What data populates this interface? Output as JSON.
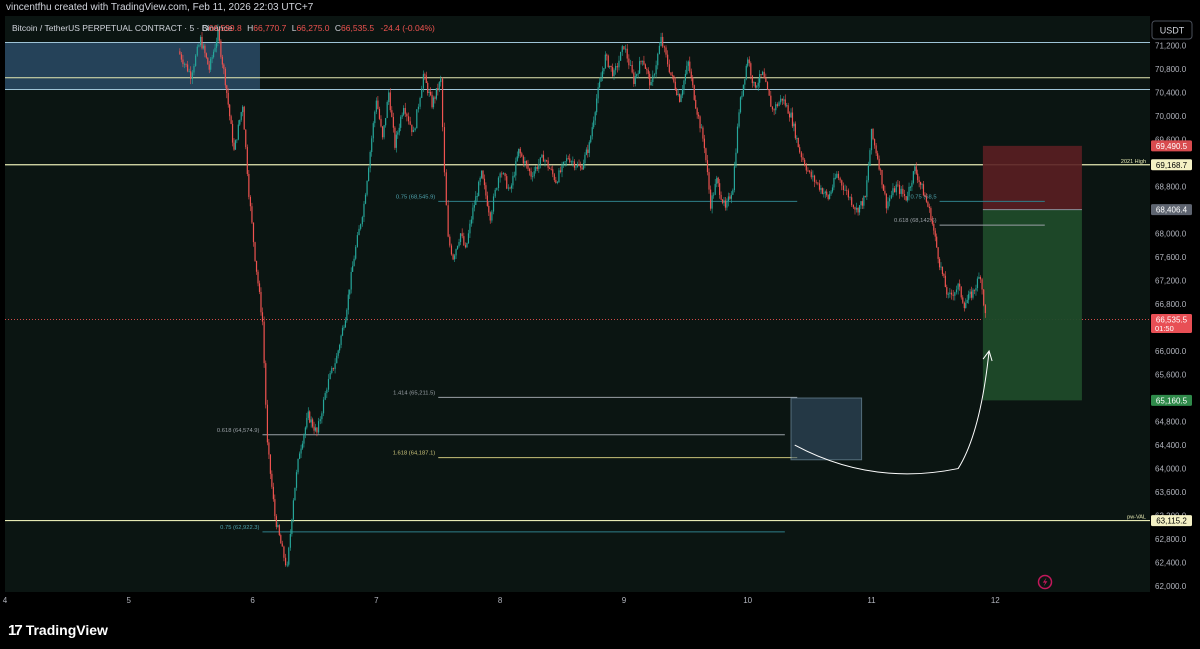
{
  "header": {
    "credit": "vincentfhu created with TradingView.com, Feb 11, 2026 22:03 UTC+7",
    "symbol": "Bitcoin / TetherUS PERPETUAL CONTRACT · 5 · Binance",
    "o_label": "O",
    "o_value": "66,599.8",
    "h_label": "H",
    "h_value": "66,770.7",
    "l_label": "L",
    "l_value": "66,275.0",
    "c_label": "C",
    "c_value": "66,535.5",
    "change": "-24.4 (-0.04%)"
  },
  "brand": {
    "name": "TradingView",
    "mark": "17"
  },
  "colors": {
    "up": "#26a69a",
    "down": "#ef5350",
    "background": "#0b1512",
    "zone": "#2a4a66",
    "level_line": "#e6e9b3",
    "fib_line": "#2f6f7a",
    "short_sl": "#5a1e22",
    "short_tp": "#1f4a2a",
    "box": "#3a5670"
  },
  "chart_data": {
    "type": "candlestick",
    "currency": "USDT",
    "ylim": [
      61900,
      71700
    ],
    "xlim": [
      4,
      13.25
    ],
    "y_ticks": [
      "71,200.0",
      "70,800.0",
      "70,400.0",
      "70,000.0",
      "69,600.0",
      "68,800.0",
      "68,000.0",
      "67,600.0",
      "67,200.0",
      "66,800.0",
      "66,000.0",
      "65,600.0",
      "64,800.0",
      "64,400.0",
      "64,000.0",
      "63,600.0",
      "63,200.0",
      "62,800.0",
      "62,400.0",
      "62,000.0"
    ],
    "x_ticks": [
      "4",
      "5",
      "6",
      "7",
      "8",
      "9",
      "10",
      "11",
      "12"
    ],
    "path": [
      [
        5.4,
        71100
      ],
      [
        5.5,
        70700
      ],
      [
        5.58,
        71300
      ],
      [
        5.65,
        70800
      ],
      [
        5.72,
        71400
      ],
      [
        5.78,
        70600
      ],
      [
        5.85,
        69400
      ],
      [
        5.92,
        70200
      ],
      [
        5.97,
        68700
      ],
      [
        6.02,
        67600
      ],
      [
        6.08,
        66500
      ],
      [
        6.12,
        64400
      ],
      [
        6.18,
        63200
      ],
      [
        6.24,
        62600
      ],
      [
        6.28,
        62300
      ],
      [
        6.33,
        63500
      ],
      [
        6.38,
        64300
      ],
      [
        6.45,
        64900
      ],
      [
        6.52,
        64600
      ],
      [
        6.6,
        65400
      ],
      [
        6.68,
        65900
      ],
      [
        6.75,
        66600
      ],
      [
        6.82,
        67600
      ],
      [
        6.9,
        68500
      ],
      [
        6.95,
        69400
      ],
      [
        7.0,
        70300
      ],
      [
        7.05,
        69600
      ],
      [
        7.1,
        70400
      ],
      [
        7.15,
        69500
      ],
      [
        7.22,
        70200
      ],
      [
        7.3,
        69700
      ],
      [
        7.38,
        70700
      ],
      [
        7.45,
        70200
      ],
      [
        7.52,
        70600
      ],
      [
        7.55,
        69000
      ],
      [
        7.58,
        67900
      ],
      [
        7.62,
        67600
      ],
      [
        7.68,
        68000
      ],
      [
        7.72,
        67700
      ],
      [
        7.78,
        68400
      ],
      [
        7.85,
        69000
      ],
      [
        7.92,
        68300
      ],
      [
        8.0,
        69100
      ],
      [
        8.08,
        68700
      ],
      [
        8.15,
        69400
      ],
      [
        8.25,
        69000
      ],
      [
        8.35,
        69300
      ],
      [
        8.45,
        68900
      ],
      [
        8.55,
        69300
      ],
      [
        8.65,
        69100
      ],
      [
        8.72,
        69500
      ],
      [
        8.78,
        70300
      ],
      [
        8.85,
        71000
      ],
      [
        8.92,
        70700
      ],
      [
        9.0,
        71200
      ],
      [
        9.08,
        70600
      ],
      [
        9.15,
        71000
      ],
      [
        9.22,
        70500
      ],
      [
        9.3,
        71300
      ],
      [
        9.38,
        70700
      ],
      [
        9.45,
        70300
      ],
      [
        9.52,
        70900
      ],
      [
        9.58,
        70200
      ],
      [
        9.65,
        69500
      ],
      [
        9.7,
        68500
      ],
      [
        9.75,
        68900
      ],
      [
        9.82,
        68400
      ],
      [
        9.88,
        68800
      ],
      [
        9.93,
        70100
      ],
      [
        10.0,
        71000
      ],
      [
        10.05,
        70500
      ],
      [
        10.12,
        70700
      ],
      [
        10.2,
        70100
      ],
      [
        10.28,
        70300
      ],
      [
        10.35,
        70000
      ],
      [
        10.42,
        69400
      ],
      [
        10.5,
        69000
      ],
      [
        10.58,
        68800
      ],
      [
        10.65,
        68600
      ],
      [
        10.72,
        69000
      ],
      [
        10.8,
        68700
      ],
      [
        10.88,
        68400
      ],
      [
        10.95,
        68600
      ],
      [
        11.0,
        69700
      ],
      [
        11.05,
        69300
      ],
      [
        11.12,
        68500
      ],
      [
        11.2,
        68800
      ],
      [
        11.28,
        68600
      ],
      [
        11.35,
        69100
      ],
      [
        11.42,
        68700
      ],
      [
        11.48,
        68300
      ],
      [
        11.55,
        67500
      ],
      [
        11.62,
        66900
      ],
      [
        11.7,
        67100
      ],
      [
        11.75,
        66800
      ],
      [
        11.82,
        67000
      ],
      [
        11.88,
        67300
      ],
      [
        11.92,
        66600
      ]
    ],
    "zone": {
      "y_low": 70450,
      "y_high": 71250,
      "x_start": 4,
      "x_end": 6.06
    },
    "levels": [
      {
        "y": 69168.7,
        "label": "2021 High",
        "price": "69,168.7",
        "color": "#e6e9b3"
      },
      {
        "y": 63115.2,
        "label": "pw-VAL",
        "price": "63,115.2",
        "color": "#e6e9b3"
      }
    ],
    "zone_inner_line": 70650,
    "zone_top_line": 71250,
    "zone_bottom_line": 70450,
    "fibs": [
      {
        "text": "0.75 (68,545.9)",
        "y": 68545.9,
        "x0": 7.5,
        "x1": 10.4,
        "color": "#2f7f8a"
      },
      {
        "text": "1.414 (65,211.5)",
        "y": 65211.5,
        "x0": 7.5,
        "x1": 10.4,
        "color": "#9aa0a6"
      },
      {
        "text": "0.618 (64,574.9)",
        "y": 64574.9,
        "x0": 6.08,
        "x1": 10.3,
        "color": "#9aa0a6"
      },
      {
        "text": "1.618 (64,187.1)",
        "y": 64187.1,
        "x0": 7.5,
        "x1": 10.4,
        "color": "#c9c27a"
      },
      {
        "text": "0.75 (62,922.3)",
        "y": 62922.3,
        "x0": 6.08,
        "x1": 10.3,
        "color": "#2f7f8a"
      },
      {
        "text": "0.75 (68,5",
        "y": 68545.9,
        "x0": 11.55,
        "x1": 12.4,
        "color": "#2f7f8a"
      },
      {
        "text": "0.618 (68,142.6)",
        "y": 68142.6,
        "x0": 11.55,
        "x1": 12.4,
        "color": "#9aa0a6"
      }
    ],
    "position": {
      "x0": 11.9,
      "x1": 12.7,
      "entry": 68406.4,
      "stop": 69490.5,
      "target": 65160.5
    },
    "box": {
      "x0": 10.35,
      "x1": 10.92,
      "y_low": 64150,
      "y_high": 65200
    },
    "price_badges": [
      {
        "price": "69,490.5",
        "y": 69490.5,
        "bg": "#d84b4f",
        "fg": "#ffffff"
      },
      {
        "price": "69,168.7",
        "y": 69168.7,
        "bg": "#f4f0c4",
        "fg": "#000000"
      },
      {
        "price": "68,406.4",
        "y": 68406.4,
        "bg": "#5e6470",
        "fg": "#ffffff"
      },
      {
        "price": "66,535.5",
        "y": 66535.5,
        "bg": "#e84f55",
        "fg": "#ffffff",
        "sub": "01:50"
      },
      {
        "price": "65,160.5",
        "y": 65160.5,
        "bg": "#2f8a4a",
        "fg": "#ffffff"
      },
      {
        "price": "63,115.2",
        "y": 63115.2,
        "bg": "#f4f0c4",
        "fg": "#000000"
      }
    ],
    "last_price": 66535.5
  }
}
